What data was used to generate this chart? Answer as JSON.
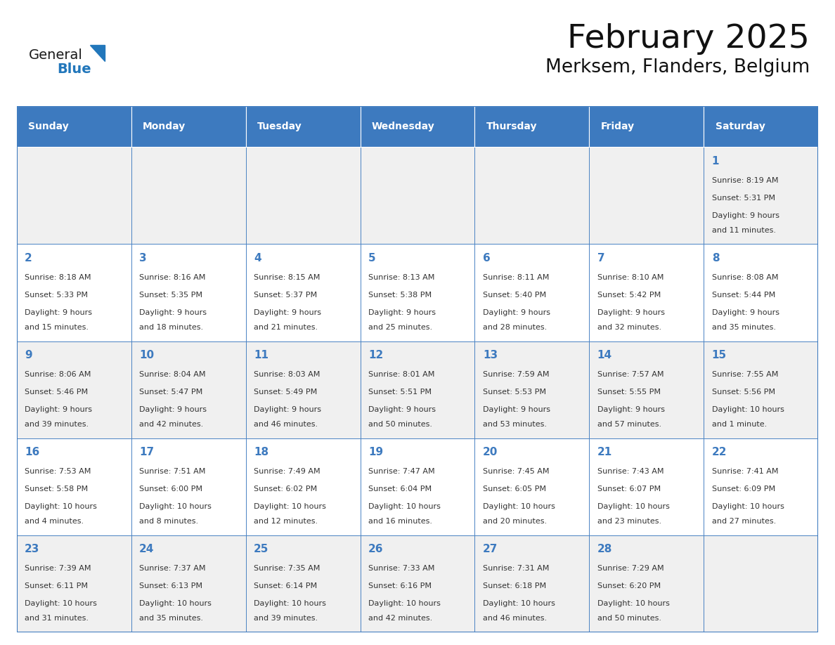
{
  "title": "February 2025",
  "subtitle": "Merksem, Flanders, Belgium",
  "header_bg": "#3d7abf",
  "header_text": "#ffffff",
  "cell_bg_row0": "#f0f0f0",
  "cell_bg_row1": "#ffffff",
  "cell_bg_row2": "#f0f0f0",
  "cell_bg_row3": "#ffffff",
  "cell_bg_row4": "#f0f0f0",
  "border_color": "#3d7abf",
  "text_color": "#333333",
  "day_num_color": "#3d7abf",
  "day_headers": [
    "Sunday",
    "Monday",
    "Tuesday",
    "Wednesday",
    "Thursday",
    "Friday",
    "Saturday"
  ],
  "logo_general_color": "#1a1a1a",
  "logo_blue_color": "#2277bb",
  "days": [
    {
      "day": "1",
      "col": 6,
      "row": 0,
      "sunrise": "8:19 AM",
      "sunset": "5:31 PM",
      "daylight_l1": "Daylight: 9 hours",
      "daylight_l2": "and 11 minutes."
    },
    {
      "day": "2",
      "col": 0,
      "row": 1,
      "sunrise": "8:18 AM",
      "sunset": "5:33 PM",
      "daylight_l1": "Daylight: 9 hours",
      "daylight_l2": "and 15 minutes."
    },
    {
      "day": "3",
      "col": 1,
      "row": 1,
      "sunrise": "8:16 AM",
      "sunset": "5:35 PM",
      "daylight_l1": "Daylight: 9 hours",
      "daylight_l2": "and 18 minutes."
    },
    {
      "day": "4",
      "col": 2,
      "row": 1,
      "sunrise": "8:15 AM",
      "sunset": "5:37 PM",
      "daylight_l1": "Daylight: 9 hours",
      "daylight_l2": "and 21 minutes."
    },
    {
      "day": "5",
      "col": 3,
      "row": 1,
      "sunrise": "8:13 AM",
      "sunset": "5:38 PM",
      "daylight_l1": "Daylight: 9 hours",
      "daylight_l2": "and 25 minutes."
    },
    {
      "day": "6",
      "col": 4,
      "row": 1,
      "sunrise": "8:11 AM",
      "sunset": "5:40 PM",
      "daylight_l1": "Daylight: 9 hours",
      "daylight_l2": "and 28 minutes."
    },
    {
      "day": "7",
      "col": 5,
      "row": 1,
      "sunrise": "8:10 AM",
      "sunset": "5:42 PM",
      "daylight_l1": "Daylight: 9 hours",
      "daylight_l2": "and 32 minutes."
    },
    {
      "day": "8",
      "col": 6,
      "row": 1,
      "sunrise": "8:08 AM",
      "sunset": "5:44 PM",
      "daylight_l1": "Daylight: 9 hours",
      "daylight_l2": "and 35 minutes."
    },
    {
      "day": "9",
      "col": 0,
      "row": 2,
      "sunrise": "8:06 AM",
      "sunset": "5:46 PM",
      "daylight_l1": "Daylight: 9 hours",
      "daylight_l2": "and 39 minutes."
    },
    {
      "day": "10",
      "col": 1,
      "row": 2,
      "sunrise": "8:04 AM",
      "sunset": "5:47 PM",
      "daylight_l1": "Daylight: 9 hours",
      "daylight_l2": "and 42 minutes."
    },
    {
      "day": "11",
      "col": 2,
      "row": 2,
      "sunrise": "8:03 AM",
      "sunset": "5:49 PM",
      "daylight_l1": "Daylight: 9 hours",
      "daylight_l2": "and 46 minutes."
    },
    {
      "day": "12",
      "col": 3,
      "row": 2,
      "sunrise": "8:01 AM",
      "sunset": "5:51 PM",
      "daylight_l1": "Daylight: 9 hours",
      "daylight_l2": "and 50 minutes."
    },
    {
      "day": "13",
      "col": 4,
      "row": 2,
      "sunrise": "7:59 AM",
      "sunset": "5:53 PM",
      "daylight_l1": "Daylight: 9 hours",
      "daylight_l2": "and 53 minutes."
    },
    {
      "day": "14",
      "col": 5,
      "row": 2,
      "sunrise": "7:57 AM",
      "sunset": "5:55 PM",
      "daylight_l1": "Daylight: 9 hours",
      "daylight_l2": "and 57 minutes."
    },
    {
      "day": "15",
      "col": 6,
      "row": 2,
      "sunrise": "7:55 AM",
      "sunset": "5:56 PM",
      "daylight_l1": "Daylight: 10 hours",
      "daylight_l2": "and 1 minute."
    },
    {
      "day": "16",
      "col": 0,
      "row": 3,
      "sunrise": "7:53 AM",
      "sunset": "5:58 PM",
      "daylight_l1": "Daylight: 10 hours",
      "daylight_l2": "and 4 minutes."
    },
    {
      "day": "17",
      "col": 1,
      "row": 3,
      "sunrise": "7:51 AM",
      "sunset": "6:00 PM",
      "daylight_l1": "Daylight: 10 hours",
      "daylight_l2": "and 8 minutes."
    },
    {
      "day": "18",
      "col": 2,
      "row": 3,
      "sunrise": "7:49 AM",
      "sunset": "6:02 PM",
      "daylight_l1": "Daylight: 10 hours",
      "daylight_l2": "and 12 minutes."
    },
    {
      "day": "19",
      "col": 3,
      "row": 3,
      "sunrise": "7:47 AM",
      "sunset": "6:04 PM",
      "daylight_l1": "Daylight: 10 hours",
      "daylight_l2": "and 16 minutes."
    },
    {
      "day": "20",
      "col": 4,
      "row": 3,
      "sunrise": "7:45 AM",
      "sunset": "6:05 PM",
      "daylight_l1": "Daylight: 10 hours",
      "daylight_l2": "and 20 minutes."
    },
    {
      "day": "21",
      "col": 5,
      "row": 3,
      "sunrise": "7:43 AM",
      "sunset": "6:07 PM",
      "daylight_l1": "Daylight: 10 hours",
      "daylight_l2": "and 23 minutes."
    },
    {
      "day": "22",
      "col": 6,
      "row": 3,
      "sunrise": "7:41 AM",
      "sunset": "6:09 PM",
      "daylight_l1": "Daylight: 10 hours",
      "daylight_l2": "and 27 minutes."
    },
    {
      "day": "23",
      "col": 0,
      "row": 4,
      "sunrise": "7:39 AM",
      "sunset": "6:11 PM",
      "daylight_l1": "Daylight: 10 hours",
      "daylight_l2": "and 31 minutes."
    },
    {
      "day": "24",
      "col": 1,
      "row": 4,
      "sunrise": "7:37 AM",
      "sunset": "6:13 PM",
      "daylight_l1": "Daylight: 10 hours",
      "daylight_l2": "and 35 minutes."
    },
    {
      "day": "25",
      "col": 2,
      "row": 4,
      "sunrise": "7:35 AM",
      "sunset": "6:14 PM",
      "daylight_l1": "Daylight: 10 hours",
      "daylight_l2": "and 39 minutes."
    },
    {
      "day": "26",
      "col": 3,
      "row": 4,
      "sunrise": "7:33 AM",
      "sunset": "6:16 PM",
      "daylight_l1": "Daylight: 10 hours",
      "daylight_l2": "and 42 minutes."
    },
    {
      "day": "27",
      "col": 4,
      "row": 4,
      "sunrise": "7:31 AM",
      "sunset": "6:18 PM",
      "daylight_l1": "Daylight: 10 hours",
      "daylight_l2": "and 46 minutes."
    },
    {
      "day": "28",
      "col": 5,
      "row": 4,
      "sunrise": "7:29 AM",
      "sunset": "6:20 PM",
      "daylight_l1": "Daylight: 10 hours",
      "daylight_l2": "and 50 minutes."
    }
  ]
}
